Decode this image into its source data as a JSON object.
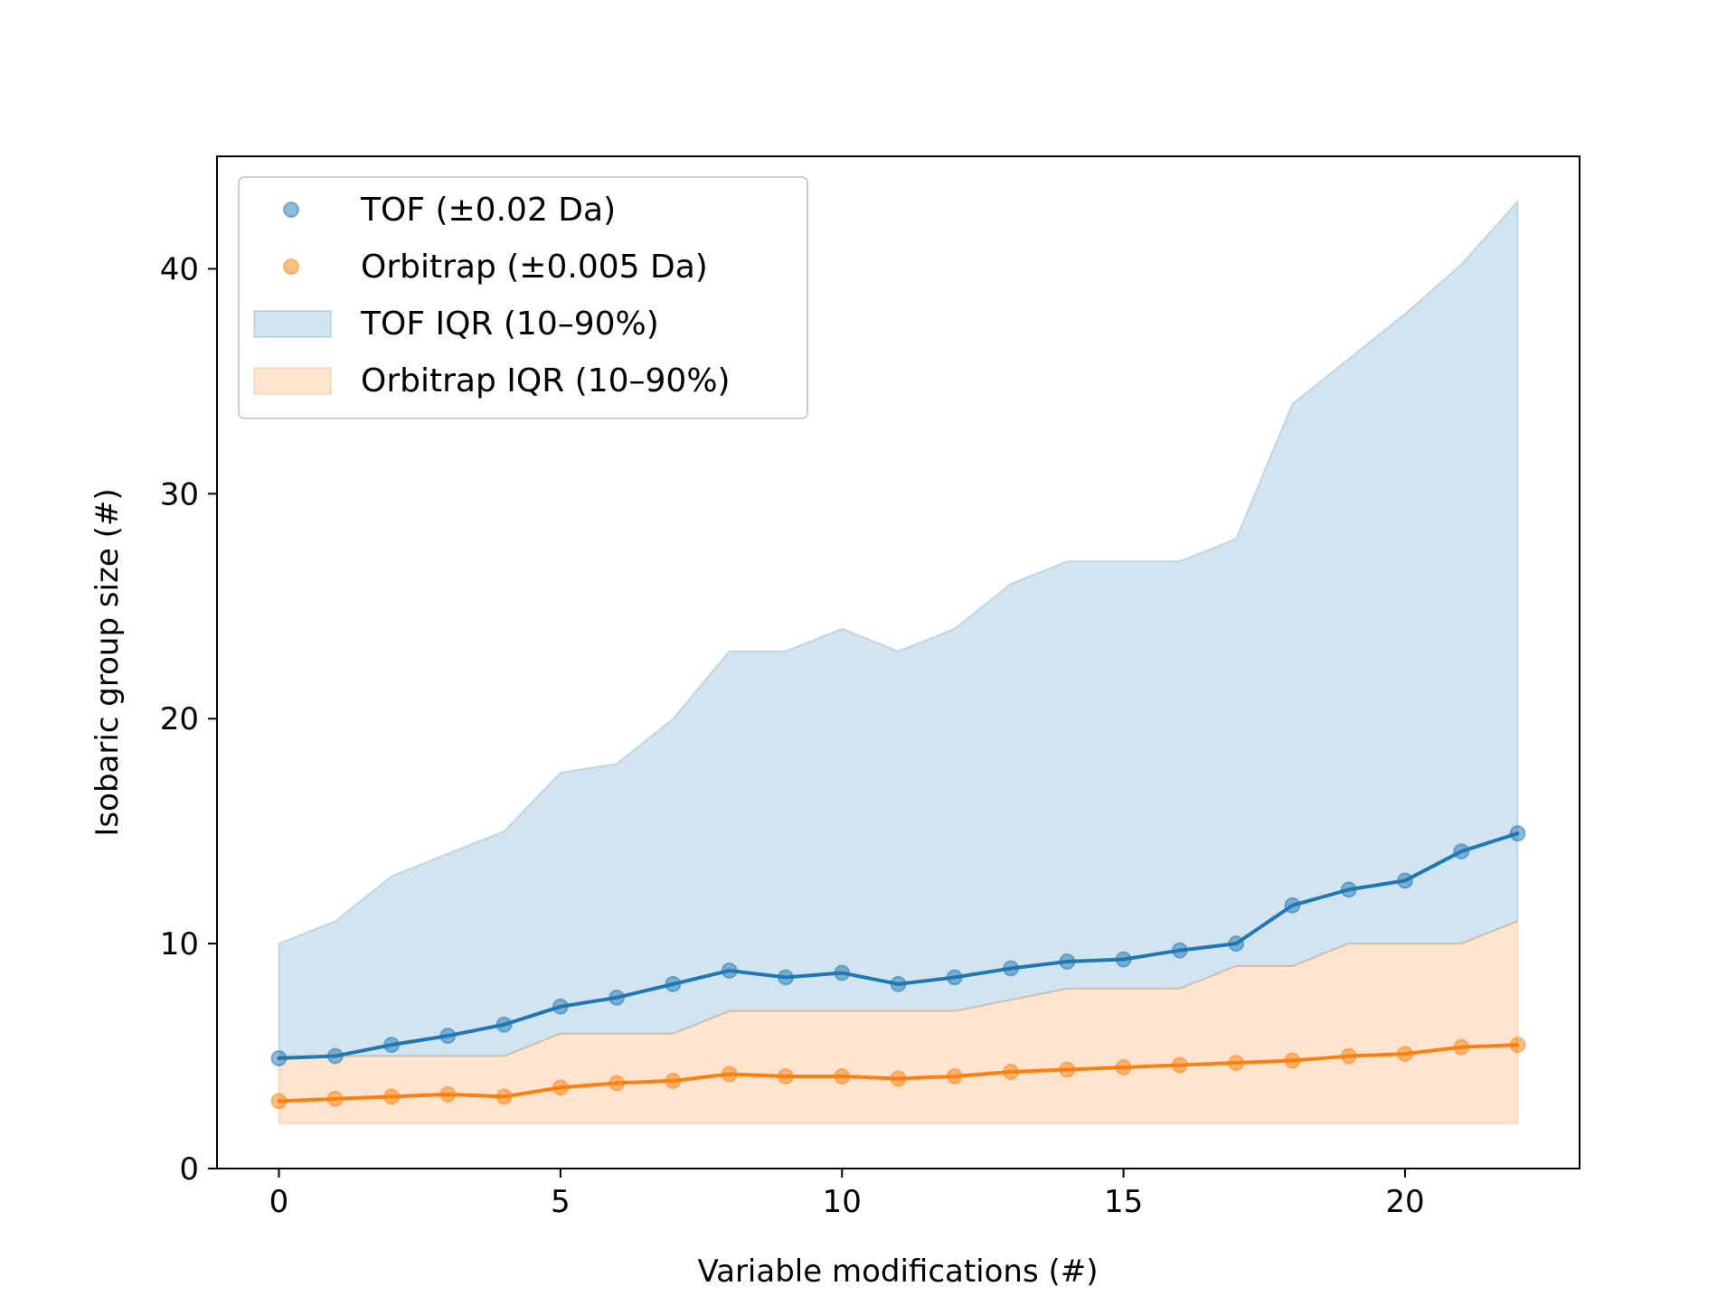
{
  "chart_data": {
    "type": "line",
    "title": "",
    "xlabel": "Variable modifications (#)",
    "ylabel": "Isobaric group size (#)",
    "xlim": [
      -1.1,
      23.1
    ],
    "ylim": [
      0,
      45
    ],
    "xticks": [
      0,
      5,
      10,
      15,
      20
    ],
    "yticks": [
      0,
      10,
      20,
      30,
      40
    ],
    "grid": false,
    "legend_position": "top-left",
    "x": [
      0,
      1,
      2,
      3,
      4,
      5,
      6,
      7,
      8,
      9,
      10,
      11,
      12,
      13,
      14,
      15,
      16,
      17,
      18,
      19,
      20,
      21,
      22
    ],
    "series": [
      {
        "name": "TOF (±0.02 Da)",
        "color": "#1f77b4",
        "values": [
          4.9,
          5.0,
          5.5,
          5.9,
          6.4,
          7.2,
          7.6,
          8.2,
          8.8,
          8.5,
          8.7,
          8.2,
          8.5,
          8.9,
          9.2,
          9.3,
          9.7,
          10.0,
          11.7,
          12.4,
          12.8,
          14.1,
          14.9
        ]
      },
      {
        "name": "Orbitrap (±0.005 Da)",
        "color": "#ff7f0e",
        "values": [
          3.0,
          3.1,
          3.2,
          3.3,
          3.2,
          3.6,
          3.8,
          3.9,
          4.2,
          4.1,
          4.1,
          4.0,
          4.1,
          4.3,
          4.4,
          4.5,
          4.6,
          4.7,
          4.8,
          5.0,
          5.1,
          5.4,
          5.5
        ]
      }
    ],
    "bands": [
      {
        "name": "TOF IQR (10–90%)",
        "color": "#1f77b4",
        "lower": [
          4.9,
          5.0,
          5.0,
          5.0,
          5.0,
          6.0,
          6.0,
          6.0,
          7.0,
          7.0,
          7.0,
          7.0,
          7.0,
          7.5,
          8.0,
          8.0,
          8.0,
          9.0,
          9.0,
          10.0,
          10.0,
          10.0,
          11.0
        ],
        "upper": [
          10.0,
          11.0,
          13.0,
          14.0,
          15.0,
          17.6,
          18.0,
          20.0,
          23.0,
          23.0,
          24.0,
          23.0,
          24.0,
          26.0,
          27.0,
          27.0,
          27.0,
          28.0,
          34.0,
          36.0,
          38.0,
          40.2,
          43.0
        ]
      },
      {
        "name": "Orbitrap IQR (10–90%)",
        "color": "#ff7f0e",
        "lower": [
          2.0,
          2.0,
          2.0,
          2.0,
          2.0,
          2.0,
          2.0,
          2.0,
          2.0,
          2.0,
          2.0,
          2.0,
          2.0,
          2.0,
          2.0,
          2.0,
          2.0,
          2.0,
          2.0,
          2.0,
          2.0,
          2.0,
          2.0
        ],
        "upper": [
          5.0,
          5.0,
          5.0,
          5.0,
          5.0,
          6.0,
          6.0,
          6.0,
          7.0,
          7.0,
          7.0,
          7.0,
          7.0,
          7.5,
          8.0,
          8.0,
          8.0,
          9.0,
          9.0,
          10.0,
          10.0,
          10.0,
          11.0
        ]
      }
    ]
  }
}
